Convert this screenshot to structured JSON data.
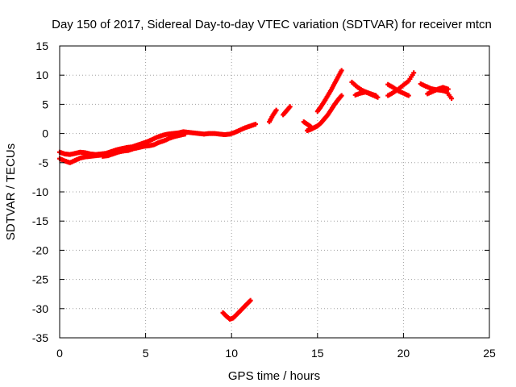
{
  "chart_data": {
    "type": "scatter",
    "title": "Day 150 of 2017, Sidereal Day-to-day VTEC variation (SDTVAR) for receiver mtcn",
    "xlabel": "GPS time / hours",
    "ylabel": "SDTVAR / TECUs",
    "xlim": [
      0,
      25
    ],
    "ylim": [
      -35,
      15
    ],
    "xticks": [
      0,
      5,
      10,
      15,
      20,
      25
    ],
    "yticks": [
      15,
      10,
      5,
      0,
      -5,
      -10,
      -15,
      -20,
      -25,
      -30,
      -35
    ],
    "grid": true,
    "marker_color": "#ff0000",
    "series": [
      {
        "name": "SDTVAR",
        "segments": [
          {
            "x": [
              0.0,
              0.3,
              0.6,
              0.9,
              1.2,
              1.5,
              1.8,
              2.1,
              2.4,
              2.7,
              3.0,
              3.3,
              3.6,
              3.9,
              4.2,
              4.5,
              4.8,
              5.1,
              5.4,
              5.7,
              6.0,
              6.3,
              6.6,
              6.9,
              7.2,
              7.5,
              7.8,
              8.1,
              8.4,
              8.7,
              9.0,
              9.3,
              9.6,
              9.9,
              10.2,
              10.5,
              10.8,
              11.1,
              11.4
            ],
            "y": [
              -3.2,
              -3.5,
              -3.6,
              -3.4,
              -3.2,
              -3.3,
              -3.5,
              -3.6,
              -3.5,
              -3.4,
              -3.1,
              -2.8,
              -2.6,
              -2.4,
              -2.3,
              -2.0,
              -1.7,
              -1.4,
              -1.0,
              -0.6,
              -0.3,
              -0.1,
              0.0,
              0.1,
              0.3,
              0.2,
              0.1,
              0.0,
              -0.1,
              0.0,
              0.0,
              -0.1,
              -0.2,
              -0.1,
              0.2,
              0.6,
              1.0,
              1.3,
              1.6
            ]
          },
          {
            "x": [
              0.0,
              0.3,
              0.6,
              0.9,
              1.2,
              1.5,
              1.8,
              2.1,
              2.4
            ],
            "y": [
              -4.3,
              -4.7,
              -5.0,
              -4.6,
              -4.2,
              -4.0,
              -3.9,
              -3.8,
              -3.7
            ]
          },
          {
            "x": [
              2.5,
              2.8,
              3.1,
              3.4,
              3.7,
              4.0,
              4.3,
              4.6,
              4.9,
              5.2,
              5.5,
              5.8,
              6.1,
              6.4,
              6.7,
              7.0,
              7.3
            ],
            "y": [
              -3.9,
              -3.8,
              -3.5,
              -3.2,
              -3.0,
              -2.9,
              -2.6,
              -2.4,
              -2.2,
              -2.1,
              -1.9,
              -1.5,
              -1.2,
              -0.8,
              -0.5,
              -0.3,
              -0.1
            ]
          },
          {
            "x": [
              12.2,
              12.4,
              12.6
            ],
            "y": [
              2.0,
              3.1,
              4.0
            ]
          },
          {
            "x": [
              13.0,
              13.2,
              13.4
            ],
            "y": [
              3.2,
              3.9,
              4.6
            ]
          },
          {
            "x": [
              14.4,
              14.6,
              14.8,
              15.0,
              15.2,
              15.4,
              15.6,
              15.8,
              16.0,
              16.2,
              16.4
            ],
            "y": [
              0.5,
              0.7,
              1.0,
              1.3,
              1.8,
              2.5,
              3.2,
              4.1,
              5.0,
              5.8,
              6.5
            ]
          },
          {
            "x": [
              15.0,
              15.2,
              15.4,
              15.6,
              15.8,
              16.0,
              16.2,
              16.4
            ],
            "y": [
              3.8,
              4.6,
              5.5,
              6.5,
              7.5,
              8.6,
              9.7,
              10.8
            ]
          },
          {
            "x": [
              14.2,
              14.4,
              14.6
            ],
            "y": [
              2.0,
              1.6,
              1.2
            ]
          },
          {
            "x": [
              17.0,
              17.3,
              17.6,
              17.9,
              18.2,
              18.5
            ],
            "y": [
              8.8,
              8.0,
              7.4,
              7.0,
              6.6,
              6.2
            ]
          },
          {
            "x": [
              17.2,
              17.5,
              17.8,
              18.1,
              18.4
            ],
            "y": [
              6.6,
              6.9,
              7.1,
              6.8,
              6.5
            ]
          },
          {
            "x": [
              19.1,
              19.4,
              19.7,
              20.0,
              20.3,
              20.6
            ],
            "y": [
              6.5,
              7.0,
              7.6,
              8.3,
              9.0,
              10.4
            ]
          },
          {
            "x": [
              19.1,
              19.4,
              19.7,
              20.0,
              20.3
            ],
            "y": [
              8.4,
              7.9,
              7.3,
              6.9,
              6.5
            ]
          },
          {
            "x": [
              21.0,
              21.3,
              21.6,
              21.9,
              22.2,
              22.5,
              22.8
            ],
            "y": [
              8.5,
              8.1,
              7.7,
              7.5,
              7.4,
              7.2,
              6.0
            ]
          },
          {
            "x": [
              21.4,
              21.7,
              22.0,
              22.3,
              22.6
            ],
            "y": [
              6.8,
              7.2,
              7.6,
              7.9,
              7.6
            ]
          },
          {
            "x": [
              9.5,
              9.7,
              9.9,
              10.1,
              10.3,
              10.5,
              10.7,
              10.9,
              11.1
            ],
            "y": [
              -30.7,
              -31.3,
              -31.8,
              -31.6,
              -31.0,
              -30.4,
              -29.8,
              -29.2,
              -28.6
            ]
          }
        ]
      }
    ]
  }
}
